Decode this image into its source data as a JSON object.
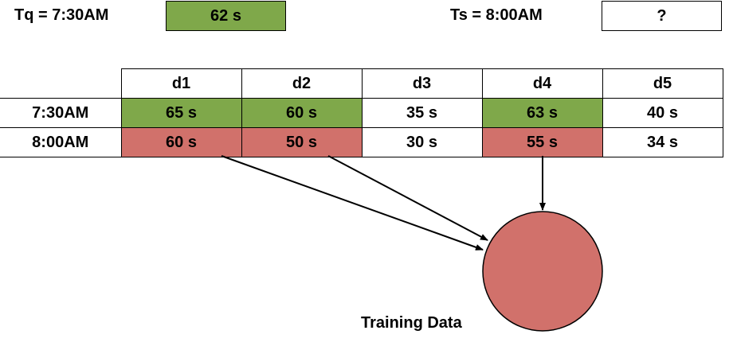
{
  "colors": {
    "match": "#7fa84a",
    "training": "#d1716b",
    "plain": "#ffffff",
    "border": "#000000"
  },
  "query": {
    "tq_label": "Tq = 7:30AM",
    "tq_value": "62 s",
    "ts_label": "Ts = 8:00AM",
    "ts_value": "?"
  },
  "table": {
    "columns": [
      "d1",
      "d2",
      "d3",
      "d4",
      "d5"
    ],
    "rows": [
      {
        "label": "7:30AM",
        "cells": [
          {
            "text": "65 s",
            "state": "match"
          },
          {
            "text": "60 s",
            "state": "match"
          },
          {
            "text": "35 s",
            "state": "plain"
          },
          {
            "text": "63 s",
            "state": "match"
          },
          {
            "text": "40 s",
            "state": "plain"
          }
        ]
      },
      {
        "label": "8:00AM",
        "cells": [
          {
            "text": "60 s",
            "state": "training"
          },
          {
            "text": "50 s",
            "state": "training"
          },
          {
            "text": "30 s",
            "state": "plain"
          },
          {
            "text": "55 s",
            "state": "training"
          },
          {
            "text": "34 s",
            "state": "plain"
          }
        ]
      }
    ]
  },
  "training": {
    "label": "Training Data"
  }
}
